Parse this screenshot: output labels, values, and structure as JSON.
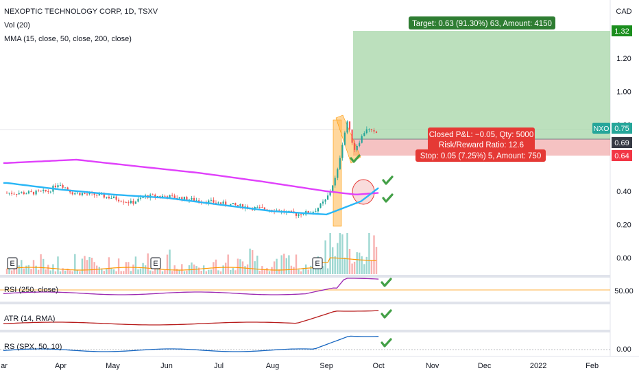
{
  "header": {
    "title": "NEXOPTIC TECHNOLOGY CORP, 1D, TSXV",
    "vol_label": "Vol (20)",
    "mma_label": "MMA (15, close, 50, close, 200, close)",
    "currency": "CAD"
  },
  "panes": {
    "rsi_label": "RSI (250, close)",
    "atr_label": "ATR (14, RMA)",
    "rs_label": "RS (SPX, 50, 10)",
    "rsi_level": "50.00",
    "rs_level": "0.00"
  },
  "annotations": {
    "target": "Target: 0.63 (91.30%) 63, Amount: 4150",
    "closed_pnl": "Closed P&L: −0.05, Qty: 5000",
    "risk_reward": "Risk/Reward Ratio: 12.6",
    "stop": "Stop: 0.05 (7.25%) 5, Amount: 750",
    "ticker_tag": "NXO",
    "earnings_marker": "E"
  },
  "price_labels": {
    "target": "1.32",
    "current": "0.75",
    "entry": "0.69",
    "stop": "0.64"
  },
  "chart_data": {
    "type": "candlestick",
    "title": "NEXOPTIC TECHNOLOGY CORP, 1D, TSXV",
    "x_ticks": [
      "ar",
      "Apr",
      "May",
      "Jun",
      "Jul",
      "Aug",
      "Sep",
      "Oct",
      "Nov",
      "Dec",
      "2022",
      "Feb"
    ],
    "y_ticks": [
      "0.00",
      "0.20",
      "0.40",
      "0.80",
      "1.00",
      "1.20"
    ],
    "ylim": [
      -0.05,
      1.4
    ],
    "close_series": [
      {
        "date": "2021-03-15",
        "value": 0.39
      },
      {
        "date": "2021-03-25",
        "value": 0.4
      },
      {
        "date": "2021-03-31",
        "value": 0.45
      },
      {
        "date": "2021-04-08",
        "value": 0.39
      },
      {
        "date": "2021-04-20",
        "value": 0.38
      },
      {
        "date": "2021-05-01",
        "value": 0.36
      },
      {
        "date": "2021-05-12",
        "value": 0.33
      },
      {
        "date": "2021-05-20",
        "value": 0.37
      },
      {
        "date": "2021-06-01",
        "value": 0.37
      },
      {
        "date": "2021-06-15",
        "value": 0.35
      },
      {
        "date": "2021-07-01",
        "value": 0.33
      },
      {
        "date": "2021-07-20",
        "value": 0.3
      },
      {
        "date": "2021-08-01",
        "value": 0.29
      },
      {
        "date": "2021-08-15",
        "value": 0.26
      },
      {
        "date": "2021-08-25",
        "value": 0.28
      },
      {
        "date": "2021-09-01",
        "value": 0.35
      },
      {
        "date": "2021-09-07",
        "value": 0.5
      },
      {
        "date": "2021-09-10",
        "value": 0.68
      },
      {
        "date": "2021-09-13",
        "value": 0.82
      },
      {
        "date": "2021-09-17",
        "value": 0.65
      },
      {
        "date": "2021-09-21",
        "value": 0.72
      },
      {
        "date": "2021-09-24",
        "value": 0.78
      },
      {
        "date": "2021-09-28",
        "value": 0.75
      },
      {
        "date": "2021-10-01",
        "value": 0.75
      }
    ],
    "moving_averages": [
      {
        "name": "MMA 200",
        "color": "#e040fb",
        "values": [
          {
            "date": "2021-03-01",
            "value": 0.57
          },
          {
            "date": "2021-04-10",
            "value": 0.59
          },
          {
            "date": "2021-05-15",
            "value": 0.55
          },
          {
            "date": "2021-06-20",
            "value": 0.51
          },
          {
            "date": "2021-07-25",
            "value": 0.46
          },
          {
            "date": "2021-09-01",
            "value": 0.4
          },
          {
            "date": "2021-09-18",
            "value": 0.38
          },
          {
            "date": "2021-10-01",
            "value": 0.39
          }
        ]
      },
      {
        "name": "MMA 50",
        "color": "#29b6f6",
        "values": [
          {
            "date": "2021-03-01",
            "value": 0.45
          },
          {
            "date": "2021-04-01",
            "value": 0.41
          },
          {
            "date": "2021-05-01",
            "value": 0.38
          },
          {
            "date": "2021-06-01",
            "value": 0.36
          },
          {
            "date": "2021-07-01",
            "value": 0.32
          },
          {
            "date": "2021-08-01",
            "value": 0.28
          },
          {
            "date": "2021-09-01",
            "value": 0.26
          },
          {
            "date": "2021-09-21",
            "value": 0.34
          },
          {
            "date": "2021-10-01",
            "value": 0.42
          }
        ]
      }
    ],
    "colors": {
      "up": "#26a69a",
      "down": "#ef5350",
      "target_zone": "#a5d6a7",
      "stop_zone": "#ef9a9a",
      "rsi": "#9c27b0",
      "atr": "#b71c1c",
      "rs": "#1565c0"
    }
  }
}
